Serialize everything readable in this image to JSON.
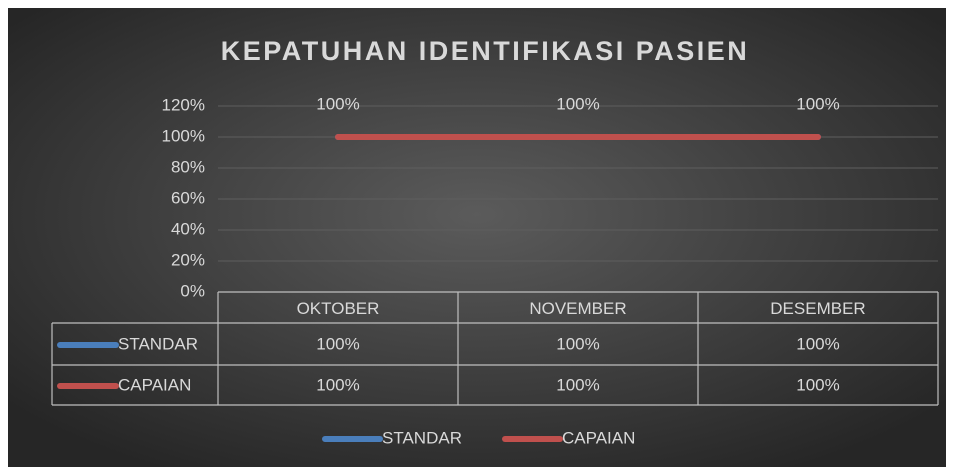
{
  "chart_data": {
    "type": "line",
    "title": "KEPATUHAN IDENTIFIKASI PASIEN",
    "categories": [
      "OKTOBER",
      "NOVEMBER",
      "DESEMBER"
    ],
    "series": [
      {
        "name": "STANDAR",
        "color": "#4a7ebb",
        "values": [
          100,
          100,
          100
        ],
        "value_labels": [
          "100%",
          "100%",
          "100%"
        ]
      },
      {
        "name": "CAPAIAN",
        "color": "#c0504d",
        "values": [
          100,
          100,
          100
        ],
        "value_labels": [
          "100%",
          "100%",
          "100%"
        ]
      }
    ],
    "ylim": [
      0,
      120
    ],
    "yticks": [
      {
        "value": 0,
        "label": "0%"
      },
      {
        "value": 20,
        "label": "20%"
      },
      {
        "value": 40,
        "label": "40%"
      },
      {
        "value": 60,
        "label": "60%"
      },
      {
        "value": 80,
        "label": "80%"
      },
      {
        "value": 100,
        "label": "100%"
      },
      {
        "value": 120,
        "label": "120%"
      }
    ],
    "grid": true,
    "data_labels_series": 1,
    "legend": "bottom",
    "data_table": true
  }
}
